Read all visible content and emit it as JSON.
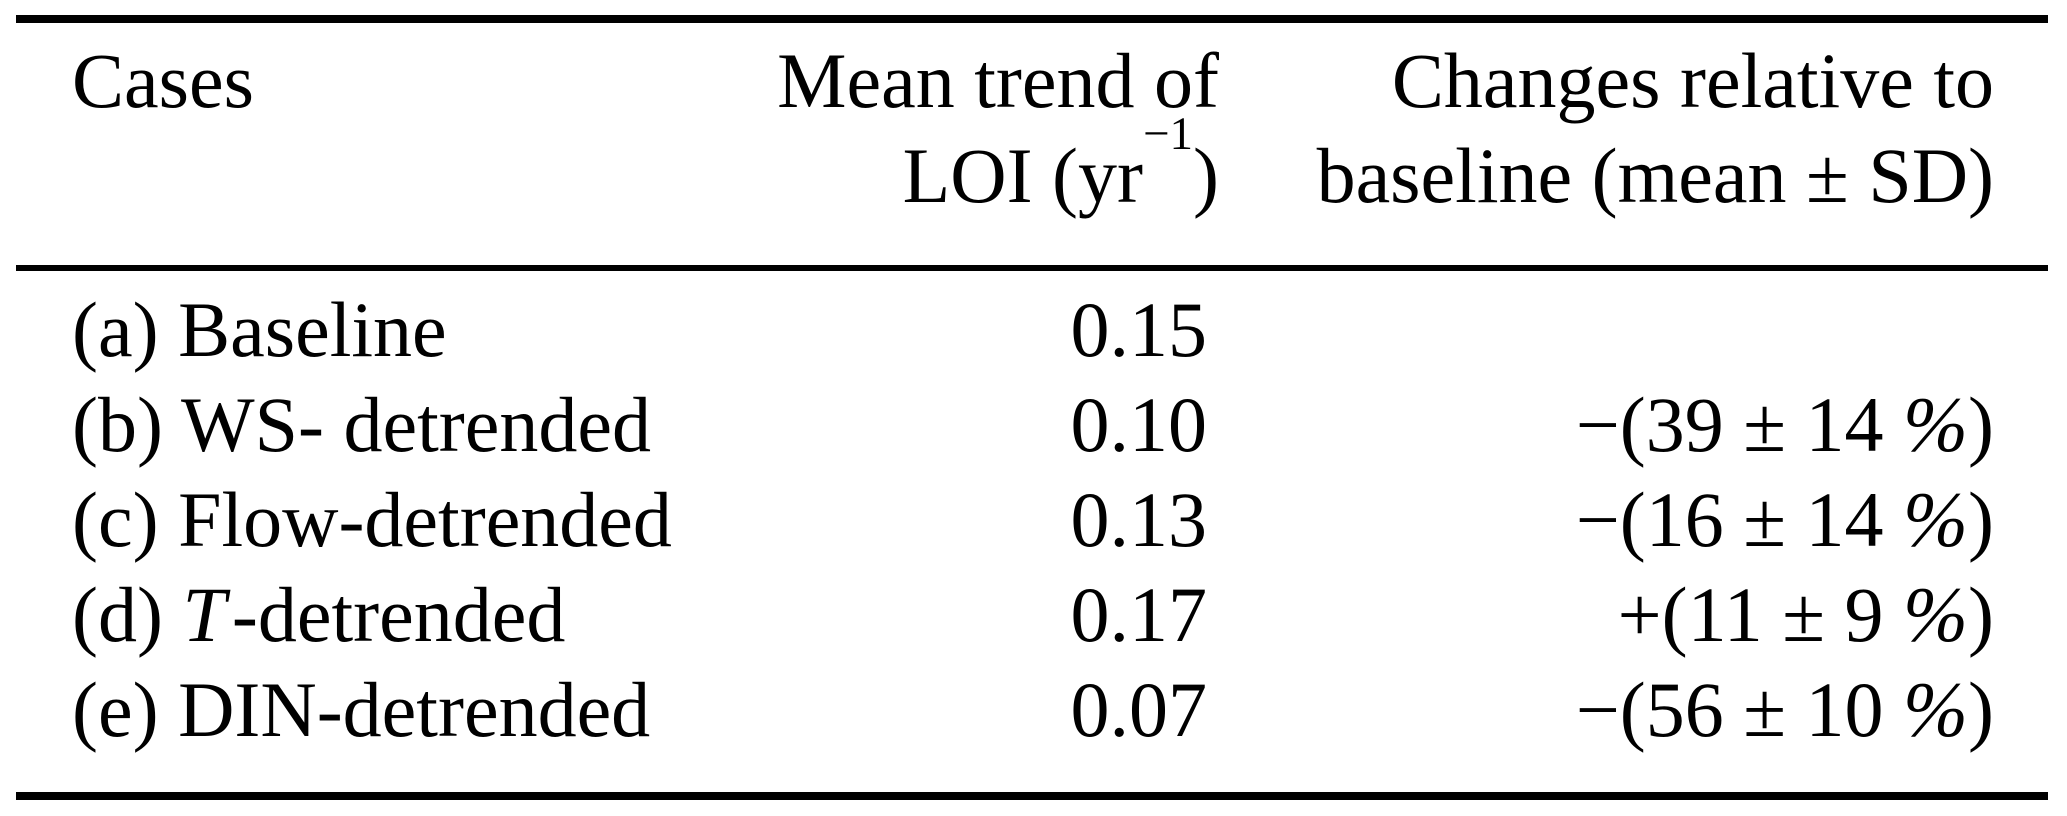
{
  "colors": {
    "text": "#000000",
    "background": "#ffffff"
  },
  "table": {
    "header": {
      "cases": "Cases",
      "trend_line1": "Mean trend of",
      "trend_unit_pre": "LOI (yr",
      "trend_unit_sup": "−1",
      "trend_unit_post": ")",
      "changes_line1": "Changes relative to",
      "changes_line2": "baseline (mean ± SD)"
    },
    "rows": [
      {
        "label_pre": "(a) Baseline",
        "label_em": "",
        "label_post": "",
        "trend": "0.15",
        "change_pre": "",
        "change_pct": "",
        "change_post": ""
      },
      {
        "label_pre": "(b) WS- detrended",
        "label_em": "",
        "label_post": "",
        "trend": "0.10",
        "change_pre": "−(39 ± 14 ",
        "change_pct": "%",
        "change_post": ")"
      },
      {
        "label_pre": "(c) Flow-detrended",
        "label_em": "",
        "label_post": "",
        "trend": "0.13",
        "change_pre": "−(16 ± 14 ",
        "change_pct": "%",
        "change_post": ")"
      },
      {
        "label_pre": "(d) ",
        "label_em": "T",
        "label_post": "-detrended",
        "trend": "0.17",
        "change_pre": "+(11 ± 9 ",
        "change_pct": "%",
        "change_post": ")"
      },
      {
        "label_pre": "(e) DIN-detrended",
        "label_em": "",
        "label_post": "",
        "trend": "0.07",
        "change_pre": "−(56 ± 10 ",
        "change_pct": "%",
        "change_post": ")"
      }
    ]
  }
}
